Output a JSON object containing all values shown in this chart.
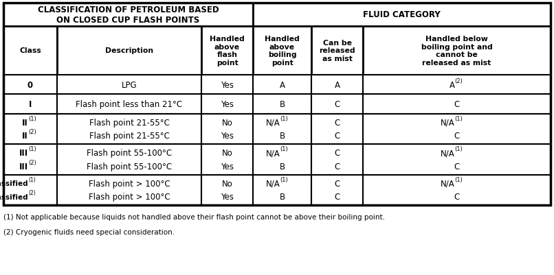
{
  "title_left": "CLASSIFICATION OF PETROLEUM BASED\nON CLOSED CUP FLASH POINTS",
  "title_right": "FLUID CATEGORY",
  "col_headers": [
    "Class",
    "Description",
    "Handled\nabove\nflash\npoint",
    "Handled\nabove\nboiling\npoint",
    "Can be\nreleased\nas mist",
    "Handled below\nboiling point and\ncannot be\nreleased as mist"
  ],
  "footnotes": [
    "(1) Not applicable because liquids not handled above their flash point cannot be above their boiling point.",
    "(2) Cryogenic fluids need special consideration."
  ],
  "bg_color": "#ffffff",
  "text_color": "#000000",
  "border_color": "#000000"
}
